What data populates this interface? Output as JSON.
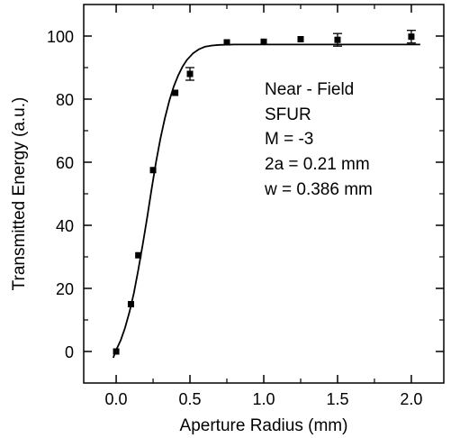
{
  "chart_data": {
    "type": "scatter",
    "title": "",
    "xlabel": "Aperture Radius (mm)",
    "ylabel": "Transmitted Energy (a.u.)",
    "xlim": [
      -0.22,
      2.22
    ],
    "ylim": [
      -10,
      110
    ],
    "x_ticks": [
      0.0,
      0.5,
      1.0,
      1.5,
      2.0
    ],
    "x_tick_labels": [
      "0.0",
      "0.5",
      "1.0",
      "1.5",
      "2.0"
    ],
    "y_ticks": [
      0,
      20,
      40,
      60,
      80,
      100
    ],
    "y_tick_labels": [
      "0",
      "20",
      "40",
      "60",
      "80",
      "100"
    ],
    "grid": false,
    "series": [
      {
        "kind": "points_with_error_bars",
        "marker": "square",
        "x": [
          0.0,
          0.1,
          0.15,
          0.25,
          0.4,
          0.5,
          0.75,
          1.0,
          1.25,
          1.5,
          2.0
        ],
        "y": [
          0.0,
          15.0,
          30.5,
          57.5,
          82.0,
          88.0,
          98.0,
          98.2,
          99.0,
          98.8,
          99.8
        ],
        "yerr": [
          0,
          0,
          0,
          0,
          0,
          2.0,
          0,
          0,
          0,
          2.0,
          2.0
        ]
      },
      {
        "kind": "fit_curve",
        "x": [
          -0.02,
          0.0,
          0.03,
          0.06,
          0.09,
          0.12,
          0.15,
          0.18,
          0.21,
          0.24,
          0.27,
          0.3,
          0.33,
          0.36,
          0.39,
          0.42,
          0.45,
          0.48,
          0.52,
          0.56,
          0.6,
          0.65,
          0.7,
          0.8,
          1.0,
          1.2,
          1.5,
          1.8,
          2.06
        ],
        "y": [
          -2.0,
          0.5,
          3.5,
          7.5,
          12.5,
          18.5,
          26.0,
          34.0,
          42.5,
          51.5,
          60.0,
          67.5,
          74.0,
          79.5,
          84.0,
          87.5,
          90.3,
          92.5,
          94.5,
          95.8,
          96.6,
          97.0,
          97.2,
          97.3,
          97.3,
          97.3,
          97.3,
          97.3,
          97.3
        ]
      }
    ],
    "annotations": [
      "Near - Field",
      "SFUR",
      "M = -3",
      "2a = 0.21 mm",
      "w = 0.386 mm"
    ]
  }
}
